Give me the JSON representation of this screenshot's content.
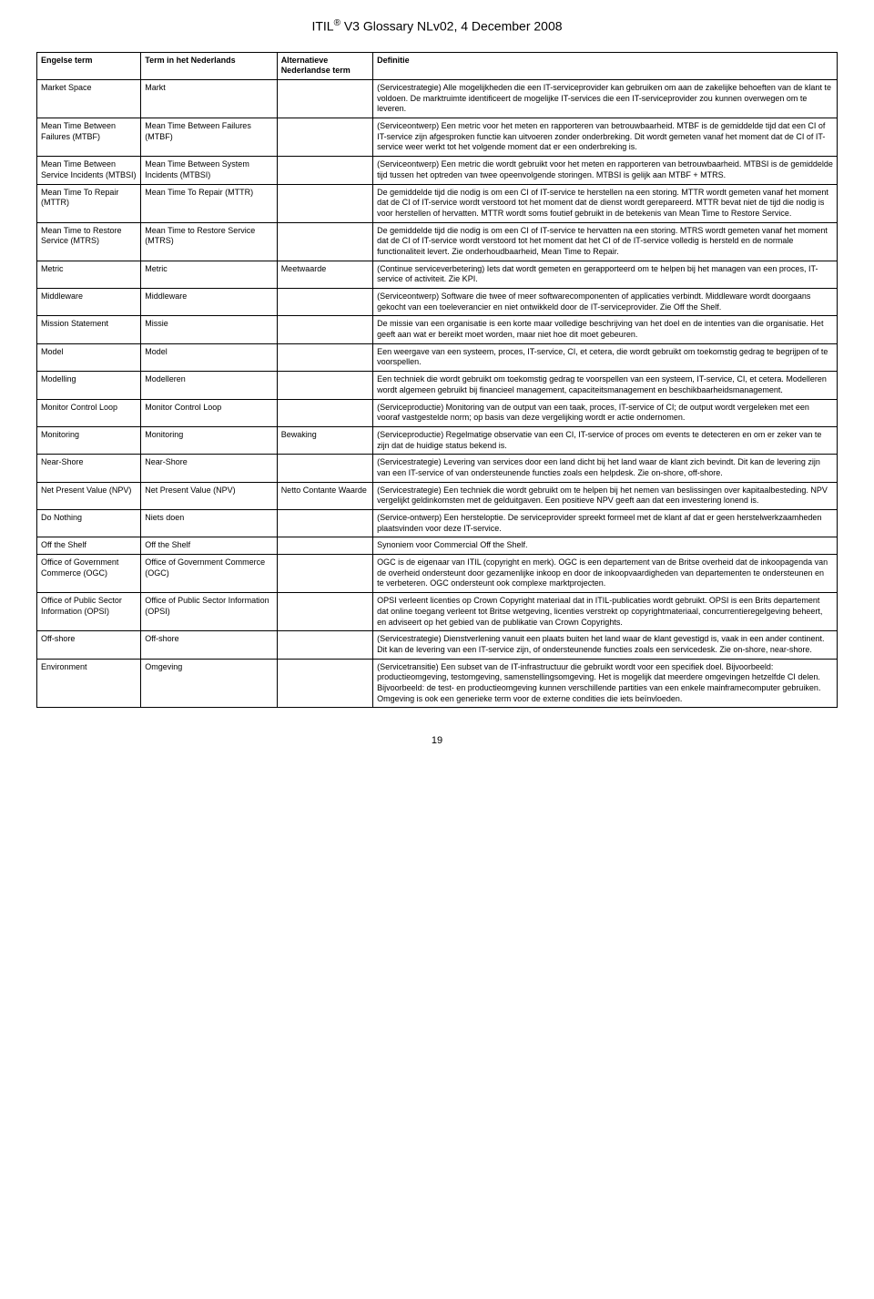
{
  "page_title_prefix": "ITIL",
  "page_title_suffix": " V3 Glossary NLv02, 4 December 2008",
  "headers": {
    "english": "Engelse term",
    "dutch": "Term in het Nederlands",
    "alt": "Alternatieve Nederlandse term",
    "def": "Definitie"
  },
  "rows": [
    {
      "en": "Market Space",
      "nl": "Markt",
      "alt": "",
      "def": "(Servicestrategie) Alle mogelijkheden die een IT-serviceprovider kan gebruiken om aan de zakelijke behoeften van de klant te voldoen. De marktruimte identificeert de mogelijke IT-services die een IT-serviceprovider zou kunnen overwegen om te leveren."
    },
    {
      "en": "Mean Time Between Failures (MTBF)",
      "nl": "Mean Time Between Failures (MTBF)",
      "alt": "",
      "def": "(Serviceontwerp) Een metric voor het meten en rapporteren van betrouwbaarheid. MTBF is de gemiddelde tijd dat een CI of IT-service zijn afgesproken functie kan uitvoeren zonder onderbreking. Dit wordt gemeten vanaf het moment dat de CI of IT-service weer werkt tot het volgende moment dat er een onderbreking is."
    },
    {
      "en": "Mean Time Between Service Incidents (MTBSI)",
      "nl": "Mean Time Between System Incidents (MTBSI)",
      "alt": "",
      "def": "(Serviceontwerp) Een metric die wordt gebruikt voor het meten en rapporteren van betrouwbaarheid. MTBSI is de gemiddelde tijd tussen het optreden van twee opeenvolgende storingen. MTBSI is gelijk aan MTBF + MTRS."
    },
    {
      "en": "Mean Time To Repair (MTTR)",
      "nl": "Mean Time To Repair (MTTR)",
      "alt": "",
      "def": "De gemiddelde tijd die nodig is om een CI of IT-service te herstellen na een storing. MTTR wordt gemeten vanaf het moment dat de CI of IT-service wordt verstoord tot het moment dat de dienst wordt gerepareerd. MTTR bevat niet de tijd die nodig is voor herstellen of hervatten. MTTR wordt soms foutief gebruikt in de betekenis van Mean Time to Restore Service."
    },
    {
      "en": "Mean Time to Restore Service (MTRS)",
      "nl": "Mean Time to Restore Service (MTRS)",
      "alt": "",
      "def": "De gemiddelde tijd die nodig is om een CI of IT-service te hervatten na een storing. MTRS wordt gemeten vanaf het moment dat de CI of IT-service wordt verstoord tot het moment dat het CI of de IT-service volledig is hersteld en de normale functionaliteit levert. Zie onderhoudbaarheid, Mean Time to Repair."
    },
    {
      "en": "Metric",
      "nl": "Metric",
      "alt": "Meetwaarde",
      "def": "(Continue serviceverbetering) Iets dat wordt gemeten en gerapporteerd om te helpen bij het managen van een proces, IT-service of activiteit. Zie KPI."
    },
    {
      "en": "Middleware",
      "nl": "Middleware",
      "alt": "",
      "def": "(Serviceontwerp) Software die twee of meer softwarecomponenten of applicaties verbindt. Middleware wordt doorgaans gekocht van een toeleverancier en niet ontwikkeld door de IT-serviceprovider. Zie Off the Shelf."
    },
    {
      "en": "Mission Statement",
      "nl": "Missie",
      "alt": "",
      "def": "De missie van een organisatie is een korte maar volledige beschrijving van het doel en de intenties van die organisatie. Het geeft aan wat er bereikt moet worden, maar niet hoe dit moet gebeuren."
    },
    {
      "en": "Model",
      "nl": "Model",
      "alt": "",
      "def": "Een weergave van een systeem, proces, IT-service, CI, et cetera, die wordt gebruikt om toekomstig gedrag te begrijpen of te voorspellen."
    },
    {
      "en": "Modelling",
      "nl": "Modelleren",
      "alt": "",
      "def": "Een techniek die wordt gebruikt om toekomstig gedrag te voorspellen van een systeem, IT-service, CI, et cetera. Modelleren wordt algemeen gebruikt bij financieel management, capaciteitsmanagement en beschikbaarheidsmanagement."
    },
    {
      "en": "Monitor Control Loop",
      "nl": "Monitor Control Loop",
      "alt": "",
      "def": "(Serviceproductie) Monitoring van de output van een taak, proces, IT-service of CI; de output wordt vergeleken met een vooraf vastgestelde norm; op basis van deze vergelijking wordt er actie ondernomen."
    },
    {
      "en": "Monitoring",
      "nl": "Monitoring",
      "alt": "Bewaking",
      "def": "(Serviceproductie) Regelmatige observatie van een CI, IT-service of proces om events te detecteren en om er zeker van te zijn dat de huidige status bekend is."
    },
    {
      "en": "Near-Shore",
      "nl": "Near-Shore",
      "alt": "",
      "def": "(Servicestrategie) Levering van services door een land dicht bij het land waar de klant zich bevindt. Dit kan de levering zijn van een IT-service of van ondersteunende functies zoals een helpdesk. Zie on-shore, off-shore."
    },
    {
      "en": "Net Present Value (NPV)",
      "nl": "Net Present Value (NPV)",
      "alt": "Netto Contante Waarde",
      "def": "(Servicestrategie) Een techniek die wordt gebruikt om te helpen bij het nemen van beslissingen over kapitaalbesteding. NPV vergelijkt geldinkomsten met de gelduitgaven. Een positieve NPV geeft aan dat een investering lonend is."
    },
    {
      "en": "Do Nothing",
      "nl": "Niets doen",
      "alt": "",
      "def": "(Service-ontwerp) Een hersteloptie. De serviceprovider spreekt formeel met de klant af dat er geen herstelwerkzaamheden plaatsvinden voor deze IT-service."
    },
    {
      "en": "Off the Shelf",
      "nl": "Off the Shelf",
      "alt": "",
      "def": "Synoniem voor Commercial Off the Shelf."
    },
    {
      "en": "Office of Government Commerce (OGC)",
      "nl": "Office of Government Commerce (OGC)",
      "alt": "",
      "def": "OGC is de eigenaar van ITIL (copyright en merk). OGC is een departement van de Britse overheid dat de inkoopagenda van de overheid ondersteunt door gezamenlijke inkoop en door de inkoopvaardigheden van departementen te ondersteunen en te verbeteren. OGC ondersteunt ook complexe marktprojecten."
    },
    {
      "en": "Office of Public Sector Information (OPSI)",
      "nl": "Office of Public Sector Information (OPSI)",
      "alt": "",
      "def": "OPSI verleent licenties op Crown Copyright materiaal dat in ITIL-publicaties wordt gebruikt. OPSI is een Brits departement dat online toegang verleent tot Britse wetgeving, licenties verstrekt op copyrightmateriaal, concurrentieregelgeving beheert, en adviseert op het gebied van de publikatie van Crown Copyrights."
    },
    {
      "en": "Off-shore",
      "nl": "Off-shore",
      "alt": "",
      "def": "(Servicestrategie) Dienstverlening vanuit een plaats buiten het land waar de klant gevestigd is, vaak in een ander continent. Dit kan de levering van een IT-service zijn, of ondersteunende functies zoals een servicedesk. Zie on-shore, near-shore."
    },
    {
      "en": "Environment",
      "nl": "Omgeving",
      "alt": "",
      "def": "(Servicetransitie) Een subset van de IT-infrastructuur die gebruikt wordt voor een specifiek doel. Bijvoorbeeld: productieomgeving, testomgeving, samenstellingsomgeving. Het is mogelijk dat meerdere omgevingen hetzelfde CI delen. Bijvoorbeeld: de test- en productieomgeving kunnen verschillende partities van een enkele mainframecomputer gebruiken. Omgeving is ook een generieke term voor de externe condities die iets beïnvloeden."
    }
  ],
  "page_number": "19"
}
